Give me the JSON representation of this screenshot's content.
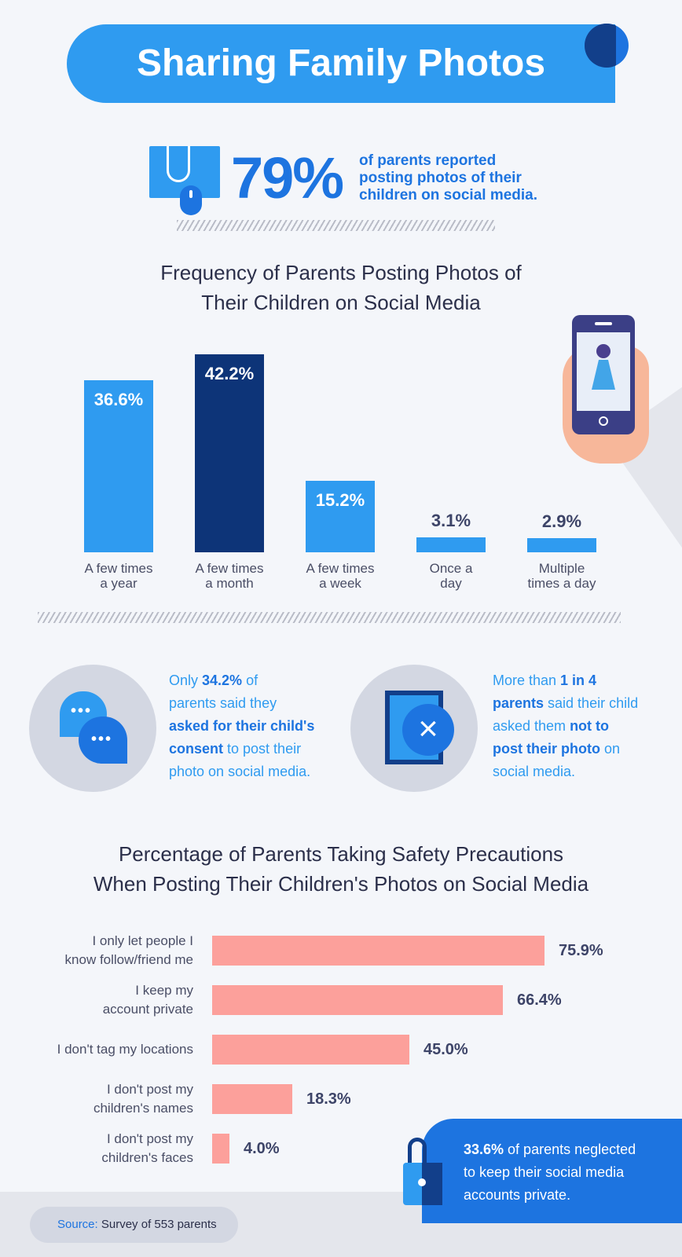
{
  "header": {
    "title": "Sharing Family Photos"
  },
  "stat": {
    "value": "79%",
    "line1": "of parents reported",
    "line2": "posting photos of their",
    "line3": "children on social media."
  },
  "frequency_title": {
    "line1": "Frequency of Parents Posting Photos of",
    "line2": "Their Children on Social Media"
  },
  "consent": {
    "c1_pre": "Only ",
    "c1_bold1": "34.2%",
    "c1_mid1": " of",
    "c1_line2": "parents said they",
    "c1_bold2": "asked for their child's",
    "c1_bold3": "consent",
    "c1_mid2": " to post their",
    "c1_line5": "photo on social media.",
    "c2_pre": "More than ",
    "c2_bold1": "1 in 4",
    "c2_bold2": "parents",
    "c2_mid1": " said their child",
    "c2_mid2": "asked them ",
    "c2_bold3": "not to",
    "c2_bold4": "post their photo",
    "c2_mid3": " on",
    "c2_line5": "social media."
  },
  "safety_title": {
    "line1": "Percentage of Parents Taking Safety Precautions",
    "line2": "When Posting Their Children's Photos on Social Media"
  },
  "callout": {
    "bold": "33.6%",
    "text1": " of parents neglected",
    "line2": "to keep their social media",
    "line3": "accounts private."
  },
  "footer": {
    "source_label": "Source:",
    "source_text": " Survey of 553 parents"
  },
  "colors": {
    "accent": "#2f9bf0",
    "dark": "#123f8a",
    "navy": "#0d3478",
    "pink": "#fca09b"
  },
  "chart_data": [
    {
      "type": "bar",
      "title": "Frequency of Parents Posting Photos of Their Children on Social Media",
      "categories": [
        [
          "A few times",
          "a year"
        ],
        [
          "A few times",
          "a month"
        ],
        [
          "A few times",
          "a week"
        ],
        [
          "Once a",
          "day"
        ],
        [
          "Multiple",
          "times a day"
        ]
      ],
      "values": [
        36.6,
        42.2,
        15.2,
        3.1,
        2.9
      ],
      "labels": [
        "36.6%",
        "42.2%",
        "15.2%",
        "3.1%",
        "2.9%"
      ],
      "highlight_index": 1,
      "ylim": [
        0,
        42.2
      ],
      "xlabel": "",
      "ylabel": ""
    },
    {
      "type": "bar",
      "orientation": "horizontal",
      "title": "Percentage of Parents Taking Safety Precautions When Posting Their Children's Photos on Social Media",
      "categories": [
        [
          "I only let people I",
          "know follow/friend me"
        ],
        [
          "I keep my",
          "account private"
        ],
        [
          "I don't tag my locations"
        ],
        [
          "I don't post my",
          "children's names"
        ],
        [
          "I don't post my",
          "children's faces"
        ]
      ],
      "values": [
        75.9,
        66.4,
        45.0,
        18.3,
        4.0
      ],
      "labels": [
        "75.9%",
        "66.4%",
        "45.0%",
        "18.3%",
        "4.0%"
      ],
      "xlim": [
        0,
        75.9
      ]
    }
  ]
}
